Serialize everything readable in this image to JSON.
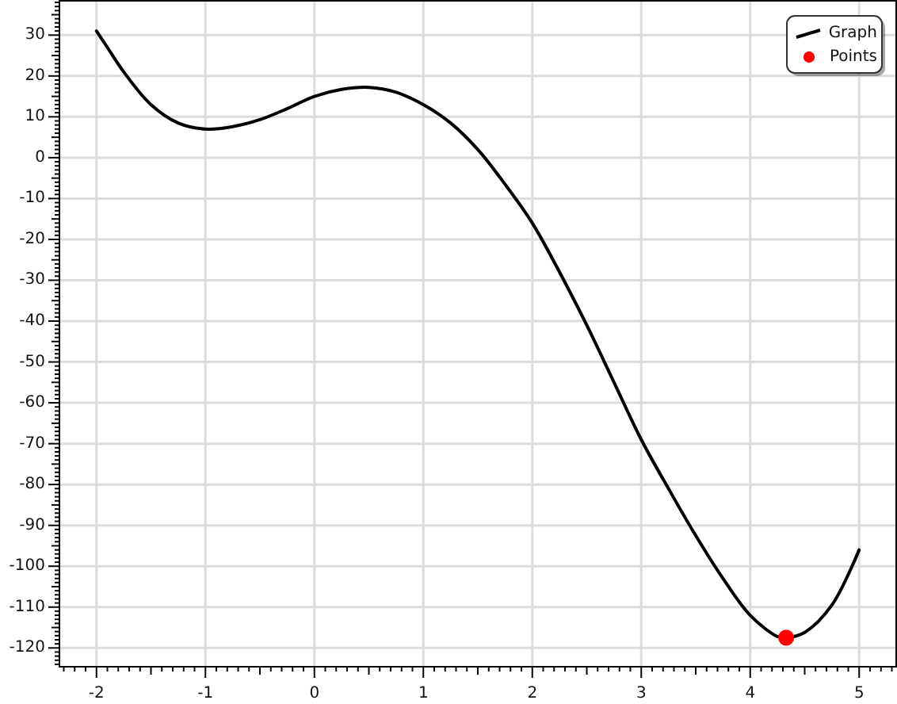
{
  "chart_data": {
    "type": "line",
    "xlim": [
      -2.34,
      5.34
    ],
    "ylim": [
      -124.6,
      38.4
    ],
    "xticks": [
      -2,
      -1,
      0,
      1,
      2,
      3,
      4,
      5,
      {
        "value": -2.3,
        "label": null
      },
      {
        "value": -2.2,
        "label": null
      },
      {
        "value": -2.1,
        "label": null
      },
      {
        "value": -1.9,
        "label": null
      },
      {
        "value": -1.8,
        "label": null
      },
      {
        "value": -1.7,
        "label": null
      },
      {
        "value": -1.6,
        "label": null
      },
      {
        "value": -1.5,
        "label": null
      },
      {
        "value": -1.4,
        "label": null
      },
      {
        "value": -1.3,
        "label": null
      },
      {
        "value": -1.2,
        "label": null
      },
      {
        "value": -1.1,
        "label": null
      },
      {
        "value": -0.9,
        "label": null
      },
      {
        "value": -0.8,
        "label": null
      },
      {
        "value": -0.7,
        "label": null
      },
      {
        "value": -0.6,
        "label": null
      },
      {
        "value": -0.5,
        "label": null
      },
      {
        "value": -0.4,
        "label": null
      },
      {
        "value": -0.3,
        "label": null
      },
      {
        "value": -0.2,
        "label": null
      },
      {
        "value": -0.1,
        "label": null
      },
      {
        "value": 0.1,
        "label": null
      },
      {
        "value": 0.2,
        "label": null
      },
      {
        "value": 0.3,
        "label": null
      },
      {
        "value": 0.4,
        "label": null
      },
      {
        "value": 0.5,
        "label": null
      },
      {
        "value": 0.6,
        "label": null
      },
      {
        "value": 0.7,
        "label": null
      },
      {
        "value": 0.8,
        "label": null
      },
      {
        "value": 0.9,
        "label": null
      },
      {
        "value": 1.1,
        "label": null
      },
      {
        "value": 1.2,
        "label": null
      },
      {
        "value": 1.3,
        "label": null
      },
      {
        "value": 1.4,
        "label": null
      },
      {
        "value": 1.5,
        "label": null
      },
      {
        "value": 1.6,
        "label": null
      },
      {
        "value": 1.7,
        "label": null
      },
      {
        "value": 1.8,
        "label": null
      },
      {
        "value": 1.9,
        "label": null
      },
      {
        "value": 2.1,
        "label": null
      },
      {
        "value": 2.2,
        "label": null
      },
      {
        "value": 2.3,
        "label": null
      },
      {
        "value": 2.4,
        "label": null
      },
      {
        "value": 2.5,
        "label": null
      },
      {
        "value": 2.6,
        "label": null
      },
      {
        "value": 2.7,
        "label": null
      },
      {
        "value": 2.8,
        "label": null
      },
      {
        "value": 2.9,
        "label": null
      },
      {
        "value": 3.1,
        "label": null
      },
      {
        "value": 3.2,
        "label": null
      },
      {
        "value": 3.3,
        "label": null
      },
      {
        "value": 3.4,
        "label": null
      },
      {
        "value": 3.5,
        "label": null
      },
      {
        "value": 3.6,
        "label": null
      },
      {
        "value": 3.7,
        "label": null
      },
      {
        "value": 3.8,
        "label": null
      },
      {
        "value": 3.9,
        "label": null
      },
      {
        "value": 4.1,
        "label": null
      },
      {
        "value": 4.2,
        "label": null
      },
      {
        "value": 4.3,
        "label": null
      },
      {
        "value": 4.4,
        "label": null
      },
      {
        "value": 4.5,
        "label": null
      },
      {
        "value": 4.6,
        "label": null
      },
      {
        "value": 4.7,
        "label": null
      },
      {
        "value": 4.8,
        "label": null
      },
      {
        "value": 4.9,
        "label": null
      },
      {
        "value": 5.1,
        "label": null
      },
      {
        "value": 5.2,
        "label": null
      },
      {
        "value": 5.3,
        "label": null
      }
    ],
    "yticks": [
      -120,
      -110,
      -100,
      -90,
      -80,
      -70,
      -60,
      -50,
      -40,
      -30,
      -20,
      -10,
      0,
      10,
      20,
      30,
      {
        "value": -124,
        "label": null
      },
      {
        "value": -123,
        "label": null
      },
      {
        "value": -122,
        "label": null
      },
      {
        "value": -121,
        "label": null
      },
      {
        "value": -119,
        "label": null
      },
      {
        "value": -118,
        "label": null
      },
      {
        "value": -117,
        "label": null
      },
      {
        "value": -116,
        "label": null
      },
      {
        "value": -115,
        "label": null
      },
      {
        "value": -114,
        "label": null
      },
      {
        "value": -113,
        "label": null
      },
      {
        "value": -112,
        "label": null
      },
      {
        "value": -111,
        "label": null
      },
      {
        "value": -109,
        "label": null
      },
      {
        "value": -108,
        "label": null
      },
      {
        "value": -107,
        "label": null
      },
      {
        "value": -106,
        "label": null
      },
      {
        "value": -105,
        "label": null
      },
      {
        "value": -104,
        "label": null
      },
      {
        "value": -103,
        "label": null
      },
      {
        "value": -102,
        "label": null
      },
      {
        "value": -101,
        "label": null
      },
      {
        "value": -99,
        "label": null
      },
      {
        "value": -98,
        "label": null
      },
      {
        "value": -97,
        "label": null
      },
      {
        "value": -96,
        "label": null
      },
      {
        "value": -95,
        "label": null
      },
      {
        "value": -94,
        "label": null
      },
      {
        "value": -93,
        "label": null
      },
      {
        "value": -92,
        "label": null
      },
      {
        "value": -91,
        "label": null
      },
      {
        "value": -89,
        "label": null
      },
      {
        "value": -88,
        "label": null
      },
      {
        "value": -87,
        "label": null
      },
      {
        "value": -86,
        "label": null
      },
      {
        "value": -85,
        "label": null
      },
      {
        "value": -84,
        "label": null
      },
      {
        "value": -83,
        "label": null
      },
      {
        "value": -82,
        "label": null
      },
      {
        "value": -81,
        "label": null
      },
      {
        "value": -79,
        "label": null
      },
      {
        "value": -78,
        "label": null
      },
      {
        "value": -77,
        "label": null
      },
      {
        "value": -76,
        "label": null
      },
      {
        "value": -75,
        "label": null
      },
      {
        "value": -74,
        "label": null
      },
      {
        "value": -73,
        "label": null
      },
      {
        "value": -72,
        "label": null
      },
      {
        "value": -71,
        "label": null
      },
      {
        "value": -69,
        "label": null
      },
      {
        "value": -68,
        "label": null
      },
      {
        "value": -67,
        "label": null
      },
      {
        "value": -66,
        "label": null
      },
      {
        "value": -65,
        "label": null
      },
      {
        "value": -64,
        "label": null
      },
      {
        "value": -63,
        "label": null
      },
      {
        "value": -62,
        "label": null
      },
      {
        "value": -61,
        "label": null
      },
      {
        "value": -59,
        "label": null
      },
      {
        "value": -58,
        "label": null
      },
      {
        "value": -57,
        "label": null
      },
      {
        "value": -56,
        "label": null
      },
      {
        "value": -55,
        "label": null
      },
      {
        "value": -54,
        "label": null
      },
      {
        "value": -53,
        "label": null
      },
      {
        "value": -52,
        "label": null
      },
      {
        "value": -51,
        "label": null
      },
      {
        "value": -49,
        "label": null
      },
      {
        "value": -48,
        "label": null
      },
      {
        "value": -47,
        "label": null
      },
      {
        "value": -46,
        "label": null
      },
      {
        "value": -45,
        "label": null
      },
      {
        "value": -44,
        "label": null
      },
      {
        "value": -43,
        "label": null
      },
      {
        "value": -42,
        "label": null
      },
      {
        "value": -41,
        "label": null
      },
      {
        "value": -39,
        "label": null
      },
      {
        "value": -38,
        "label": null
      },
      {
        "value": -37,
        "label": null
      },
      {
        "value": -36,
        "label": null
      },
      {
        "value": -35,
        "label": null
      },
      {
        "value": -34,
        "label": null
      },
      {
        "value": -33,
        "label": null
      },
      {
        "value": -32,
        "label": null
      },
      {
        "value": -31,
        "label": null
      },
      {
        "value": -29,
        "label": null
      },
      {
        "value": -28,
        "label": null
      },
      {
        "value": -27,
        "label": null
      },
      {
        "value": -26,
        "label": null
      },
      {
        "value": -25,
        "label": null
      },
      {
        "value": -24,
        "label": null
      },
      {
        "value": -23,
        "label": null
      },
      {
        "value": -22,
        "label": null
      },
      {
        "value": -21,
        "label": null
      },
      {
        "value": -19,
        "label": null
      },
      {
        "value": -18,
        "label": null
      },
      {
        "value": -17,
        "label": null
      },
      {
        "value": -16,
        "label": null
      },
      {
        "value": -15,
        "label": null
      },
      {
        "value": -14,
        "label": null
      },
      {
        "value": -13,
        "label": null
      },
      {
        "value": -12,
        "label": null
      },
      {
        "value": -11,
        "label": null
      },
      {
        "value": -9,
        "label": null
      },
      {
        "value": -8,
        "label": null
      },
      {
        "value": -7,
        "label": null
      },
      {
        "value": -6,
        "label": null
      },
      {
        "value": -5,
        "label": null
      },
      {
        "value": -4,
        "label": null
      },
      {
        "value": -3,
        "label": null
      },
      {
        "value": -2,
        "label": null
      },
      {
        "value": -1,
        "label": null
      },
      {
        "value": 1,
        "label": null
      },
      {
        "value": 2,
        "label": null
      },
      {
        "value": 3,
        "label": null
      },
      {
        "value": 4,
        "label": null
      },
      {
        "value": 5,
        "label": null
      },
      {
        "value": 6,
        "label": null
      },
      {
        "value": 7,
        "label": null
      },
      {
        "value": 8,
        "label": null
      },
      {
        "value": 9,
        "label": null
      },
      {
        "value": 11,
        "label": null
      },
      {
        "value": 12,
        "label": null
      },
      {
        "value": 13,
        "label": null
      },
      {
        "value": 14,
        "label": null
      },
      {
        "value": 15,
        "label": null
      },
      {
        "value": 16,
        "label": null
      },
      {
        "value": 17,
        "label": null
      },
      {
        "value": 18,
        "label": null
      },
      {
        "value": 19,
        "label": null
      },
      {
        "value": 21,
        "label": null
      },
      {
        "value": 22,
        "label": null
      },
      {
        "value": 23,
        "label": null
      },
      {
        "value": 24,
        "label": null
      },
      {
        "value": 25,
        "label": null
      },
      {
        "value": 26,
        "label": null
      },
      {
        "value": 27,
        "label": null
      },
      {
        "value": 28,
        "label": null
      },
      {
        "value": 29,
        "label": null
      },
      {
        "value": 31,
        "label": null
      },
      {
        "value": 32,
        "label": null
      },
      {
        "value": 33,
        "label": null
      },
      {
        "value": 34,
        "label": null
      },
      {
        "value": 35,
        "label": null
      },
      {
        "value": 36,
        "label": null
      },
      {
        "value": 37,
        "label": null
      },
      {
        "value": 38,
        "label": null
      }
    ],
    "grid": true,
    "legend": "top right",
    "series": [
      {
        "name": "Graph",
        "color": "#000000",
        "x": [
          -2,
          -1.9,
          -1.75,
          -1.5,
          -1.25,
          -1,
          -0.75,
          -0.5,
          -0.25,
          0,
          0.25,
          0.5,
          0.75,
          1,
          1.25,
          1.5,
          1.75,
          2,
          2.25,
          2.5,
          2.75,
          3,
          3.25,
          3.5,
          3.75,
          4,
          4.25,
          4.33,
          4.5,
          4.75,
          5
        ],
        "values": [
          31,
          27,
          21,
          13,
          8.5,
          7,
          7.6,
          9.3,
          12,
          15,
          16.7,
          17.2,
          16,
          13,
          8.5,
          2,
          -6.5,
          -16,
          -28,
          -41,
          -55,
          -69,
          -81,
          -92.5,
          -103,
          -112,
          -117.2,
          -117.5,
          -116.2,
          -109.5,
          -96
        ]
      },
      {
        "name": "Points",
        "type": "scatter",
        "color": "#ff0000",
        "marker": "circle",
        "x": [
          4.33
        ],
        "values": [
          -117.5
        ]
      }
    ]
  }
}
